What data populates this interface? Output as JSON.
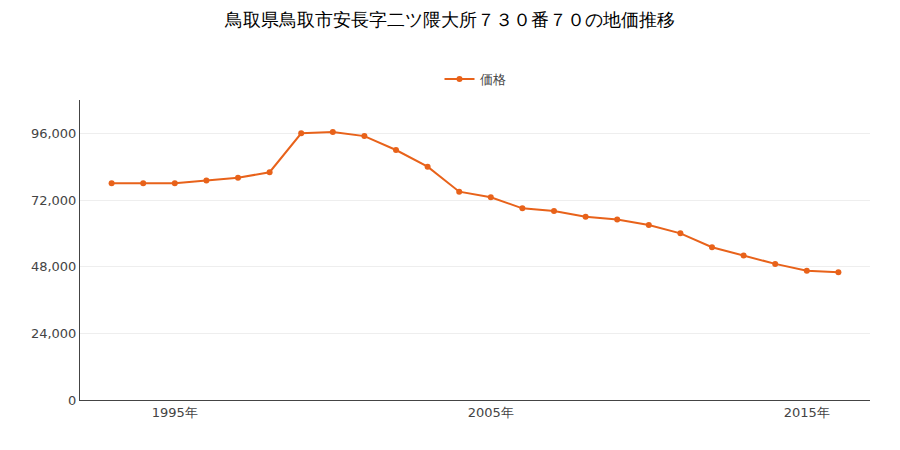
{
  "chart_data": {
    "type": "line",
    "title": "鳥取県鳥取市安長字二ツ隈大所７３０番７０の地価推移",
    "x": [
      1993,
      1994,
      1995,
      1996,
      1997,
      1998,
      1999,
      2000,
      2001,
      2002,
      2003,
      2004,
      2005,
      2006,
      2007,
      2008,
      2009,
      2010,
      2011,
      2012,
      2013,
      2014,
      2015,
      2016
    ],
    "series": [
      {
        "name": "価格",
        "color": "#E8621A",
        "marker": "circle",
        "values": [
          78000,
          78000,
          78000,
          79000,
          80000,
          82000,
          96000,
          96500,
          95000,
          90000,
          84000,
          75000,
          73000,
          69000,
          68000,
          66000,
          65000,
          63000,
          60000,
          55000,
          52000,
          49000,
          46500,
          46000
        ]
      }
    ],
    "xlim": [
      1992,
      2017
    ],
    "xticks": [
      {
        "value": 1995,
        "label": "1995年"
      },
      {
        "value": 2005,
        "label": "2005年"
      },
      {
        "value": 2015,
        "label": "2015年"
      }
    ],
    "ylim": [
      0,
      108000
    ],
    "yticks": [
      0,
      {
        "value": 24000,
        "label": "24,000"
      },
      {
        "value": 48000,
        "label": "48,000"
      },
      {
        "value": 72000,
        "label": "72,000"
      },
      {
        "value": 96000,
        "label": "96,000"
      }
    ],
    "grid": "y",
    "legend": "top"
  }
}
